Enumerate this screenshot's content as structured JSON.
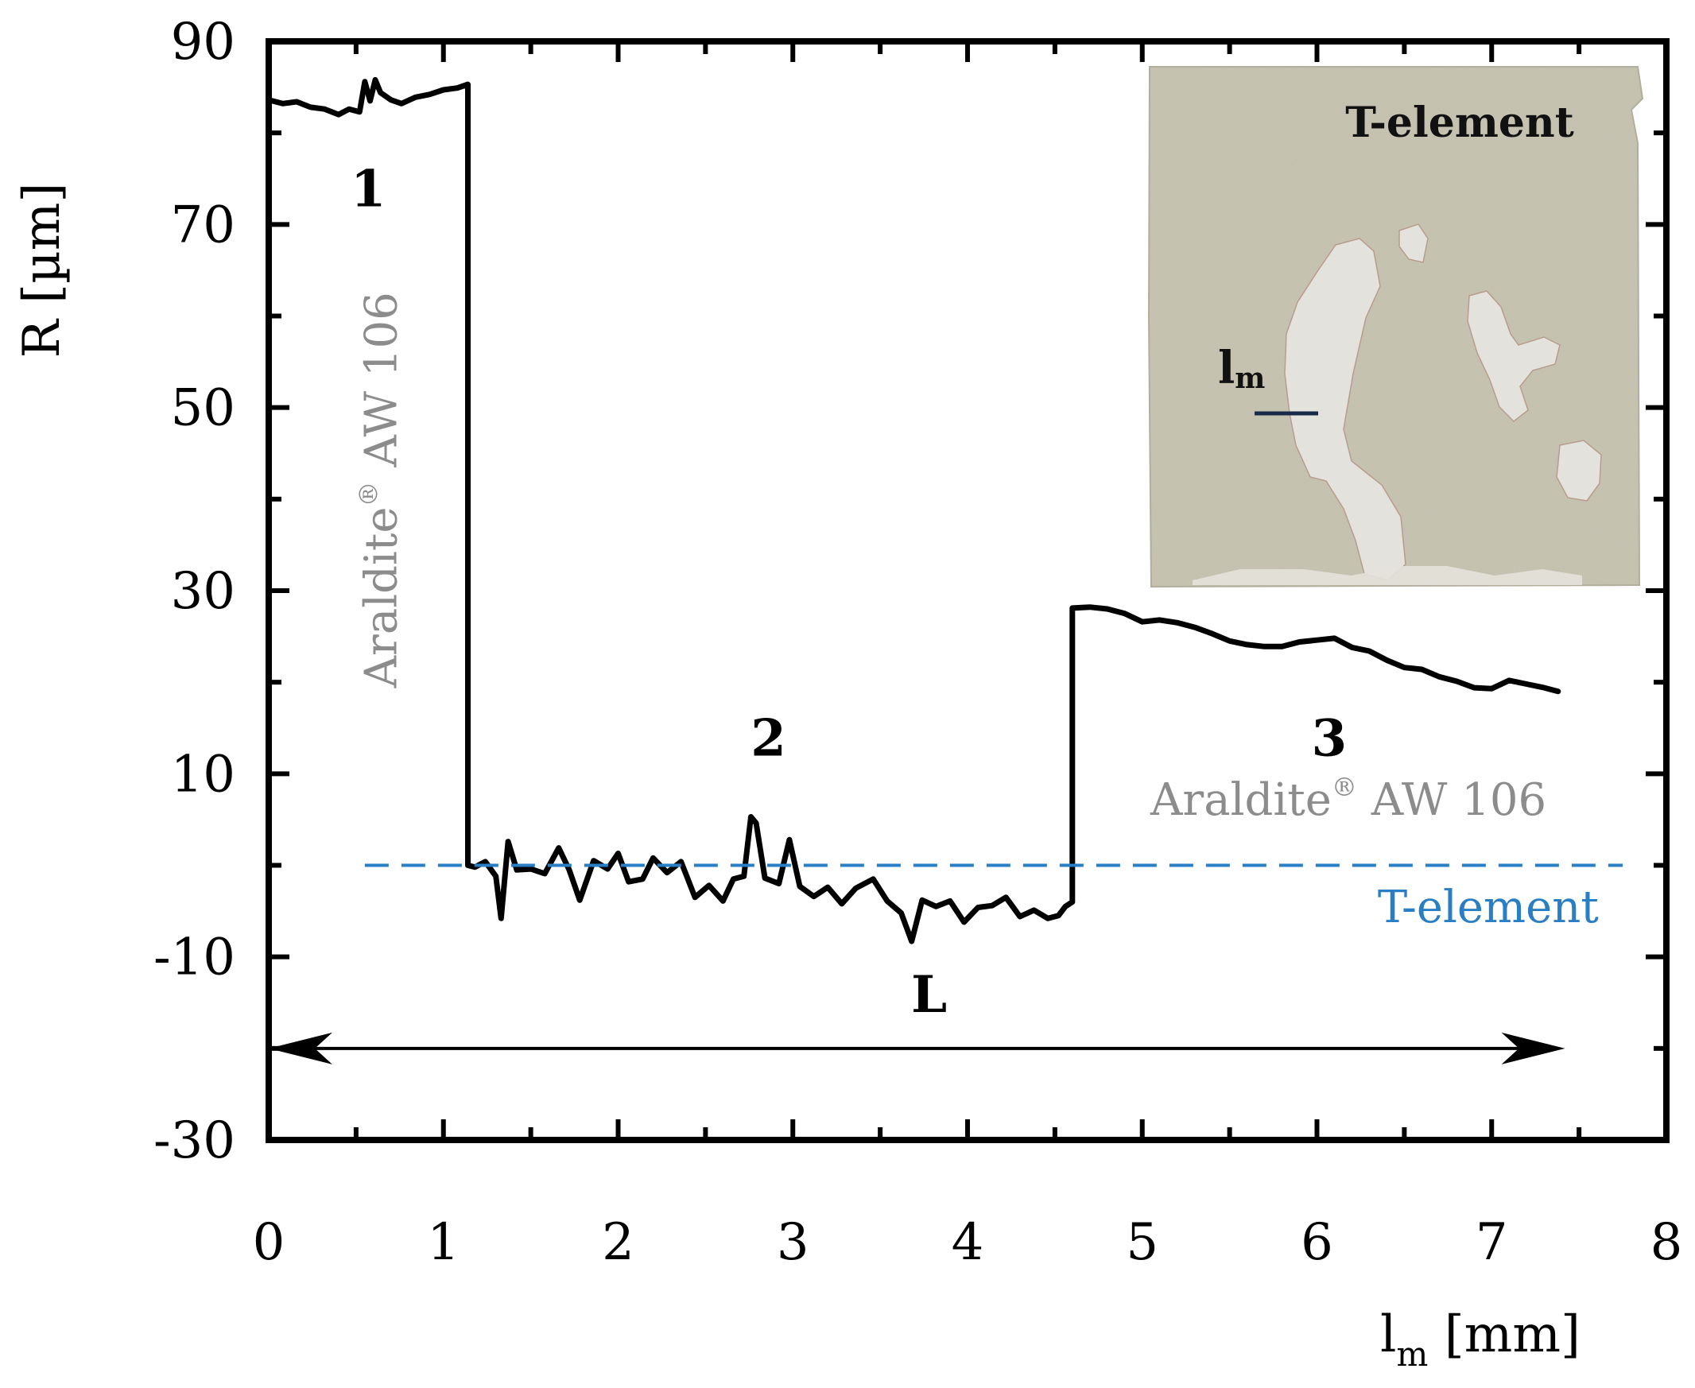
{
  "chart_data": {
    "type": "line",
    "xlabel": {
      "main": "l",
      "sub": "m",
      "unit": " [mm]"
    },
    "ylabel": "R [µm]",
    "xlim": [
      0,
      8
    ],
    "ylim": [
      -30,
      90
    ],
    "x_ticks": [
      0,
      1,
      2,
      3,
      4,
      5,
      6,
      7,
      8
    ],
    "x_tick_labels": [
      "0",
      "1",
      "2",
      "3",
      "4",
      "5",
      "6",
      "7",
      "8"
    ],
    "x_minor_step": 0.5,
    "y_ticks": [
      -30,
      -10,
      10,
      30,
      50,
      70,
      90
    ],
    "y_tick_labels": [
      "-30",
      "-10",
      "10",
      "30",
      "50",
      "70",
      "90"
    ],
    "y_minor_step": 10,
    "grid": false,
    "series": [
      {
        "color": "#000000",
        "style": "solid",
        "points": [
          [
            0.0,
            83.6
          ],
          [
            0.08,
            83.2
          ],
          [
            0.16,
            83.4
          ],
          [
            0.24,
            82.8
          ],
          [
            0.32,
            82.6
          ],
          [
            0.4,
            82.0
          ],
          [
            0.46,
            82.6
          ],
          [
            0.52,
            82.3
          ],
          [
            0.55,
            85.6
          ],
          [
            0.58,
            83.5
          ],
          [
            0.61,
            85.8
          ],
          [
            0.64,
            84.4
          ],
          [
            0.7,
            83.6
          ],
          [
            0.76,
            83.2
          ],
          [
            0.84,
            83.9
          ],
          [
            0.92,
            84.2
          ],
          [
            1.0,
            84.7
          ],
          [
            1.08,
            84.9
          ],
          [
            1.14,
            85.3
          ],
          [
            1.14,
            0.0
          ],
          [
            1.18,
            -0.2
          ],
          [
            1.24,
            0.4
          ],
          [
            1.3,
            -1.2
          ],
          [
            1.33,
            -5.8
          ],
          [
            1.37,
            2.6
          ],
          [
            1.42,
            -0.5
          ],
          [
            1.5,
            -0.4
          ],
          [
            1.58,
            -0.9
          ],
          [
            1.66,
            1.9
          ],
          [
            1.72,
            -0.5
          ],
          [
            1.78,
            -3.8
          ],
          [
            1.86,
            0.5
          ],
          [
            1.94,
            -0.4
          ],
          [
            2.0,
            1.3
          ],
          [
            2.06,
            -1.8
          ],
          [
            2.14,
            -1.5
          ],
          [
            2.2,
            0.8
          ],
          [
            2.28,
            -0.8
          ],
          [
            2.36,
            0.4
          ],
          [
            2.44,
            -3.5
          ],
          [
            2.52,
            -2.2
          ],
          [
            2.6,
            -3.9
          ],
          [
            2.66,
            -1.5
          ],
          [
            2.72,
            -1.2
          ],
          [
            2.76,
            5.3
          ],
          [
            2.79,
            4.6
          ],
          [
            2.84,
            -1.4
          ],
          [
            2.92,
            -2.0
          ],
          [
            2.98,
            2.8
          ],
          [
            3.04,
            -2.3
          ],
          [
            3.12,
            -3.4
          ],
          [
            3.2,
            -2.4
          ],
          [
            3.28,
            -4.2
          ],
          [
            3.36,
            -2.5
          ],
          [
            3.46,
            -1.5
          ],
          [
            3.54,
            -3.9
          ],
          [
            3.62,
            -5.2
          ],
          [
            3.68,
            -8.3
          ],
          [
            3.74,
            -3.8
          ],
          [
            3.82,
            -4.5
          ],
          [
            3.9,
            -3.9
          ],
          [
            3.98,
            -6.2
          ],
          [
            4.06,
            -4.6
          ],
          [
            4.14,
            -4.4
          ],
          [
            4.22,
            -3.5
          ],
          [
            4.3,
            -5.6
          ],
          [
            4.38,
            -4.9
          ],
          [
            4.46,
            -5.8
          ],
          [
            4.52,
            -5.5
          ],
          [
            4.56,
            -4.5
          ],
          [
            4.6,
            -4.0
          ],
          [
            4.6,
            28.1
          ],
          [
            4.7,
            28.2
          ],
          [
            4.8,
            28.0
          ],
          [
            4.9,
            27.5
          ],
          [
            5.0,
            26.6
          ],
          [
            5.1,
            26.8
          ],
          [
            5.2,
            26.5
          ],
          [
            5.3,
            26.0
          ],
          [
            5.4,
            25.3
          ],
          [
            5.5,
            24.5
          ],
          [
            5.6,
            24.1
          ],
          [
            5.7,
            23.9
          ],
          [
            5.8,
            23.9
          ],
          [
            5.9,
            24.4
          ],
          [
            6.0,
            24.6
          ],
          [
            6.1,
            24.8
          ],
          [
            6.2,
            23.8
          ],
          [
            6.3,
            23.4
          ],
          [
            6.4,
            22.4
          ],
          [
            6.5,
            21.6
          ],
          [
            6.6,
            21.4
          ],
          [
            6.7,
            20.6
          ],
          [
            6.8,
            20.1
          ],
          [
            6.9,
            19.4
          ],
          [
            7.0,
            19.3
          ],
          [
            7.1,
            20.2
          ],
          [
            7.2,
            19.8
          ],
          [
            7.3,
            19.4
          ],
          [
            7.38,
            19.0
          ]
        ]
      },
      {
        "name": "T-element",
        "color": "#2a7fc4",
        "style": "dashed",
        "x": [
          0.55,
          7.75
        ],
        "y": [
          0,
          0
        ]
      }
    ],
    "annotations": [
      {
        "text": "1",
        "x": 0.57,
        "y": 72
      },
      {
        "text": "2",
        "x": 2.86,
        "y": 12
      },
      {
        "text": "3",
        "x": 6.07,
        "y": 12
      },
      {
        "text": "L",
        "x": 3.78,
        "y": -16
      }
    ],
    "dimension_arrow": {
      "label": "L",
      "x1": 0.0,
      "x2": 7.42,
      "y": -20
    },
    "material_labels": [
      {
        "text": "Araldite",
        "sup": "®",
        "rest": " AW 106",
        "orientation": "vertical",
        "x": 0.73,
        "y": 41
      },
      {
        "text": "Araldite",
        "sup": "®",
        "rest": " AW 106",
        "orientation": "horizontal",
        "x": 6.18,
        "y": 5.5
      }
    ],
    "boundary_label": {
      "text": "T-element",
      "x": 6.98,
      "y": -6.2
    },
    "inset": {
      "title": "T-element",
      "marker_label_main": "l",
      "marker_label_sub": "m",
      "background": "#c6c2b0",
      "bare_metal_color": "#e4e2dc",
      "marker_color": "#1a2a4a"
    }
  }
}
